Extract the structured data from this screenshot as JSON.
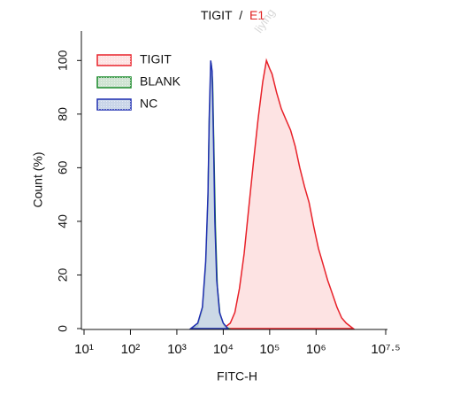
{
  "chart_data": {
    "type": "histogram-overlay",
    "title": [
      "TIGIT",
      "/",
      "E1"
    ],
    "title_colors": [
      "#111111",
      "#111111",
      "#e02020"
    ],
    "watermark": "liying",
    "x_label": "FITC-H",
    "y_label": "Count  (%)",
    "x_log": true,
    "xlim": [
      10,
      31622777
    ],
    "xticks": [
      {
        "value": 10,
        "label": "10¹"
      },
      {
        "value": 100,
        "label": "10²"
      },
      {
        "value": 1000,
        "label": "10³"
      },
      {
        "value": 10000,
        "label": "10⁴"
      },
      {
        "value": 100000,
        "label": "10⁵"
      },
      {
        "value": 1000000,
        "label": "10⁶"
      },
      {
        "value": 31622777,
        "label": "10⁷·⁵"
      }
    ],
    "ylim": [
      0,
      111
    ],
    "yticks": [
      0,
      20,
      40,
      60,
      80,
      100
    ],
    "legend": "top-left",
    "series": [
      {
        "name": "TIGIT",
        "color": "#e8222a",
        "fill": "#fde3e3",
        "x": [
          10000,
          14125,
          17783,
          22387,
          28184,
          35481,
          44668,
          56234,
          70795,
          85114,
          100000,
          112202,
          141254,
          177828,
          223872,
          281838,
          354813,
          446684,
          562341,
          707946,
          891251,
          1122018,
          1412538,
          1778279,
          2238721,
          2818383,
          3548134,
          4466836,
          6309573
        ],
        "values": [
          0,
          2,
          6,
          15,
          28,
          45,
          62,
          78,
          92,
          100,
          97,
          95,
          88,
          82,
          78,
          74,
          68,
          60,
          53,
          47,
          38,
          30,
          24,
          18,
          13,
          8,
          4,
          2,
          0
        ]
      },
      {
        "name": "BLANK",
        "color": "#1a8a2a",
        "fill": "#cfe3d2",
        "x": [
          1995,
          2818,
          3548,
          4169,
          4677,
          5012,
          5495,
          5888,
          6310,
          6761,
          7413,
          8511,
          10471,
          13183
        ],
        "values": [
          0,
          1,
          7,
          22,
          48,
          78,
          99,
          92,
          65,
          38,
          16,
          5,
          1,
          0
        ]
      },
      {
        "name": "NC",
        "color": "#1f2fb0",
        "fill": "#c9d5e8",
        "x": [
          1995,
          2818,
          3548,
          4169,
          4677,
          5012,
          5370,
          5754,
          6166,
          6607,
          7244,
          8318,
          10000,
          12589
        ],
        "values": [
          0,
          2,
          8,
          25,
          50,
          80,
          100,
          96,
          70,
          40,
          18,
          6,
          2,
          0
        ]
      }
    ]
  }
}
